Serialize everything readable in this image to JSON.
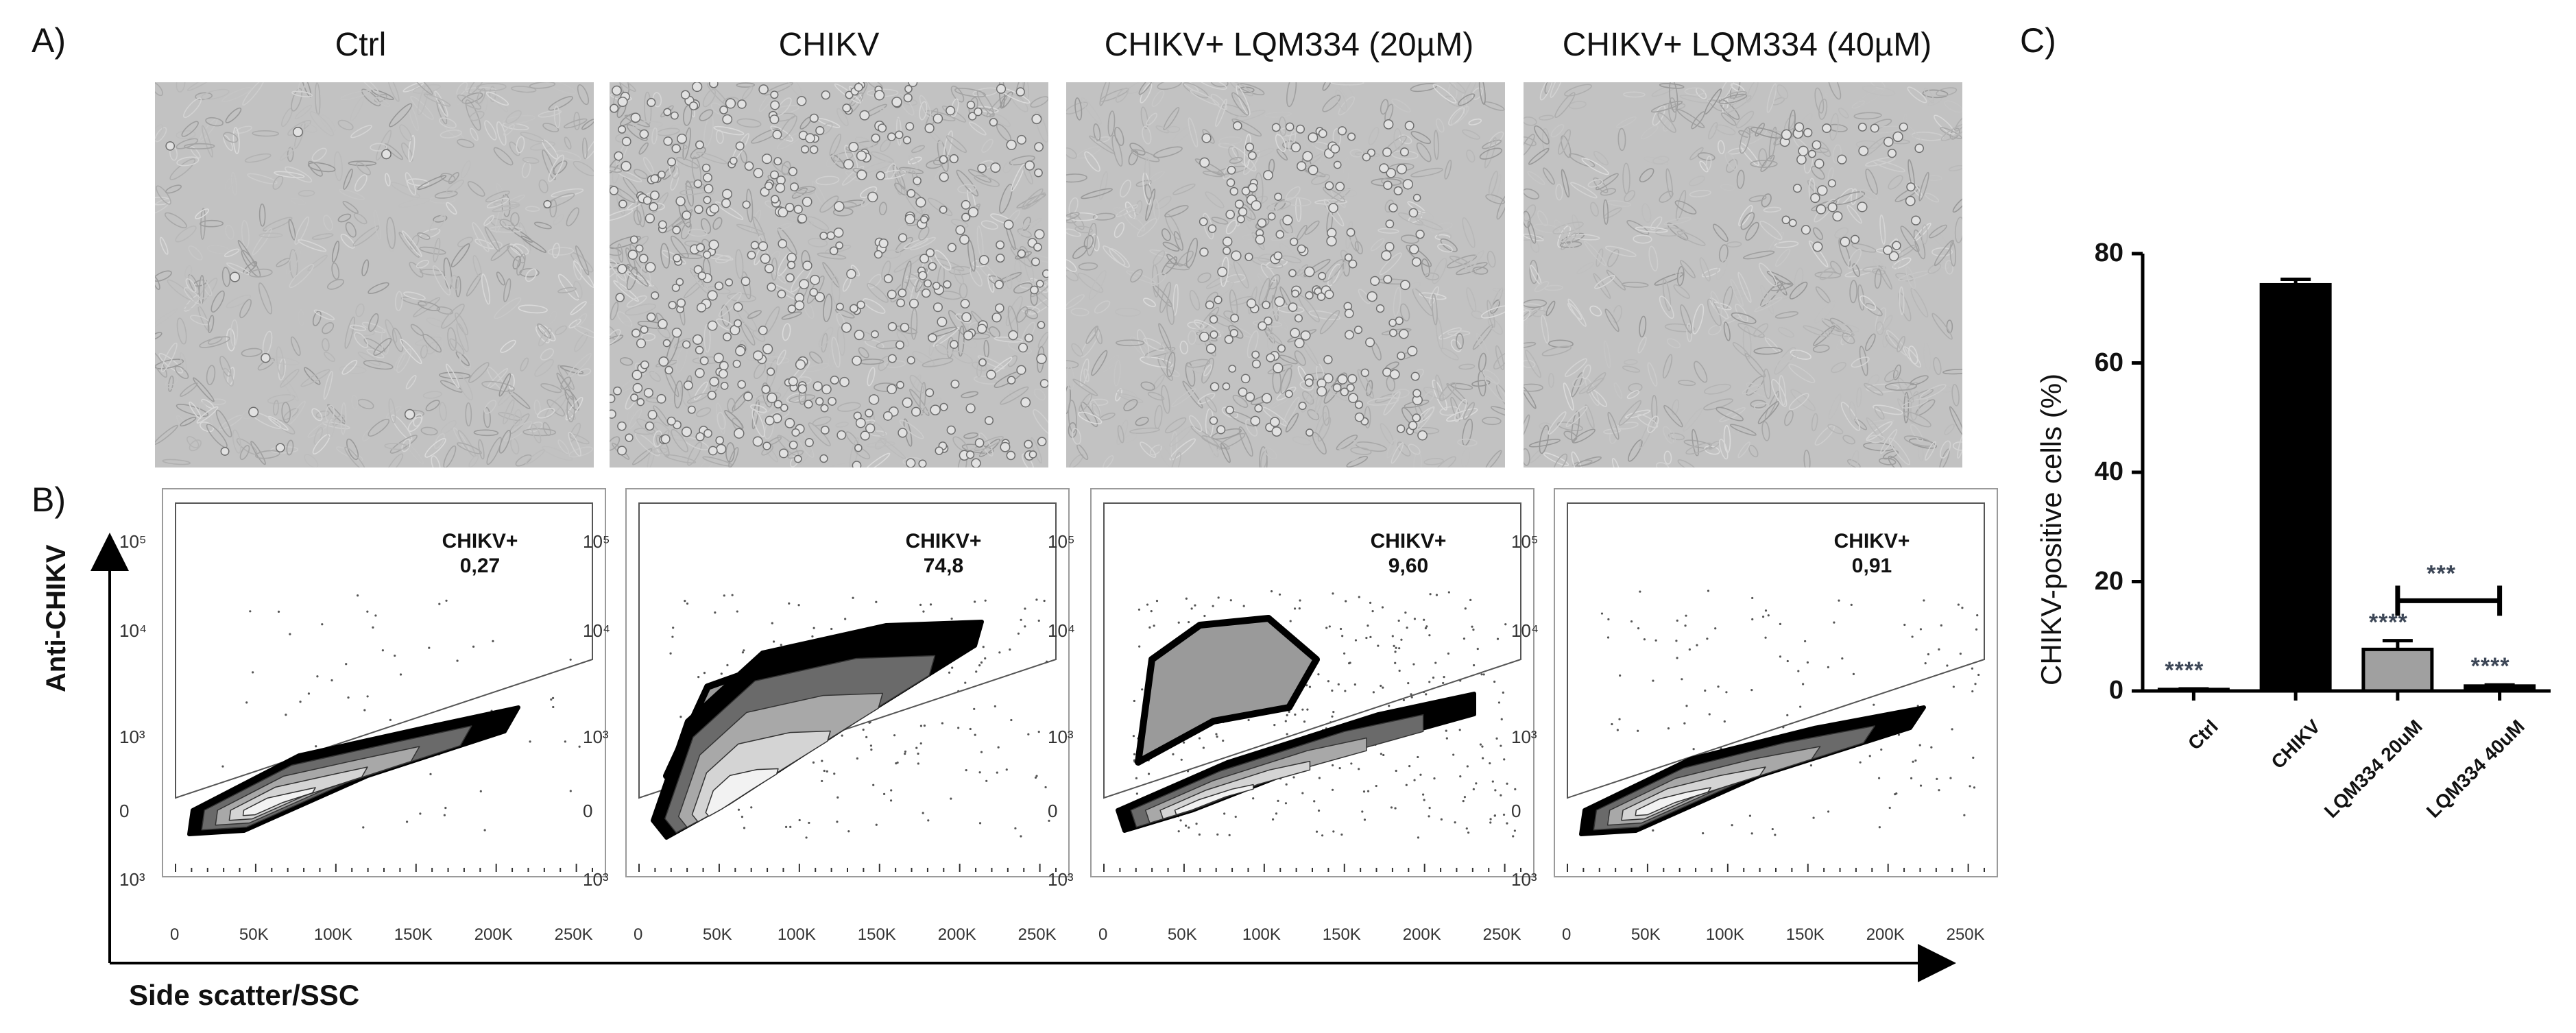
{
  "panels": {
    "a": "A)",
    "b": "B)",
    "c": "C)"
  },
  "micro_titles": [
    "Ctrl",
    "CHIKV",
    "CHIKV+ LQM334 (20µM)",
    "CHIKV+ LQM334 (40µM)"
  ],
  "flow": {
    "y_axis_label": "Anti-CHIKV",
    "x_axis_label": "Side scatter/SSC",
    "y_ticks": [
      "10⁵",
      "10⁴",
      "10³",
      "0",
      "10³"
    ],
    "x_ticks": [
      "0",
      "50K",
      "100K",
      "150K",
      "200K",
      "250K"
    ],
    "gate_name": "CHIKV+",
    "gate_values": [
      "0,27",
      "74,8",
      "9,60",
      "0,91"
    ]
  },
  "chart_data": {
    "type": "bar",
    "categories": [
      "Ctrl",
      "CHIKV",
      "LQM334 20uM",
      "LQM334 40uM"
    ],
    "values": [
      0.27,
      74.3,
      7.6,
      0.9
    ],
    "errors": [
      0.1,
      1.0,
      1.6,
      0.2
    ],
    "ylabel": "CHIKV-positive cells (%)",
    "ylim": [
      0,
      80
    ],
    "yticks": [
      0,
      20,
      40,
      60,
      80
    ],
    "bar_colors": [
      "#000000",
      "#000000",
      "#a0a0a0",
      "#000000"
    ],
    "significance": [
      "****",
      "",
      "****",
      "****"
    ],
    "bracket": {
      "from": "LQM334 20uM",
      "to": "LQM334 40uM",
      "label": "***"
    }
  }
}
